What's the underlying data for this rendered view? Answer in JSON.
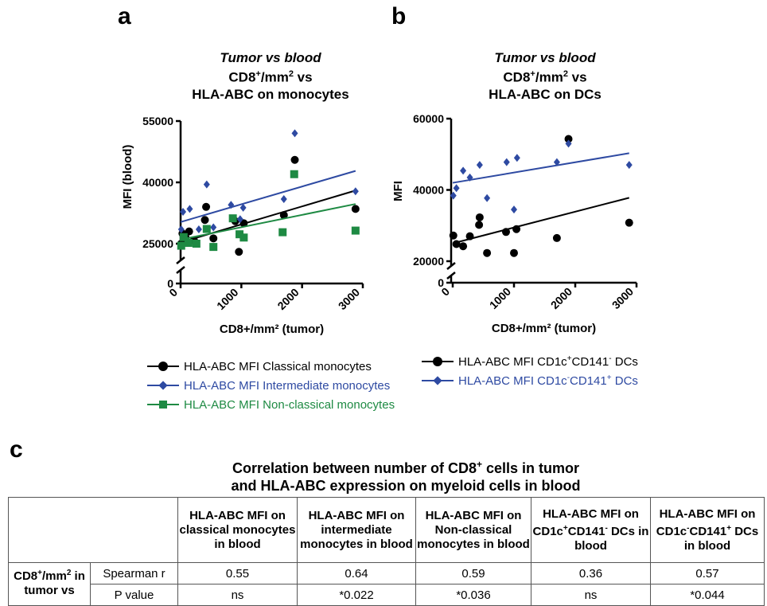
{
  "panels": {
    "a": "a",
    "b": "b",
    "c": "c"
  },
  "chart_a": {
    "title_italic": "Tumor vs blood",
    "title_line2_pre": "CD8",
    "title_line2_sup": "+",
    "title_line2_mid": "/mm",
    "title_line2_sup2": "2",
    "title_line2_post": " vs",
    "title_line3": "HLA-ABC on monocytes"
  },
  "chart_b": {
    "title_italic": "Tumor vs blood",
    "title_line2_pre": "CD8",
    "title_line2_sup": "+",
    "title_line2_mid": "/mm",
    "title_line2_sup2": "2",
    "title_line2_post": " vs",
    "title_line3": "HLA-ABC on DCs"
  },
  "chart_data": [
    {
      "type": "scatter",
      "title": "Tumor vs blood CD8+/mm2 vs HLA-ABC on monocytes",
      "xlabel": "CD8+/mm² (tumor)",
      "ylabel": "MFI (blood)",
      "xlim": [
        0,
        3000
      ],
      "ylim": [
        0,
        55000
      ],
      "y_axis_break": true,
      "xticks": [
        "0",
        "1000",
        "2000",
        "3000"
      ],
      "yticks": [
        "0",
        "25000",
        "40000",
        "55000"
      ],
      "series": [
        {
          "name": "HLA-ABC MFI Classical monocytes",
          "color": "#000000",
          "marker": "circle",
          "x": [
            10,
            30,
            80,
            140,
            220,
            400,
            420,
            540,
            900,
            960,
            1040,
            1700,
            1880,
            2880
          ],
          "y": [
            25000,
            27500,
            26500,
            28000,
            25800,
            30800,
            34000,
            26300,
            30500,
            23000,
            30000,
            32000,
            45500,
            33500
          ],
          "fit": [
            [
              0,
              25300
            ],
            [
              2880,
              38000
            ]
          ]
        },
        {
          "name": "HLA-ABC MFI Intermediate monocytes",
          "color": "#2e4aa2",
          "marker": "diamond",
          "x": [
            10,
            40,
            150,
            300,
            430,
            540,
            830,
            980,
            1030,
            1700,
            1880,
            2880
          ],
          "y": [
            28500,
            32800,
            33500,
            28500,
            39500,
            29000,
            34500,
            31000,
            33800,
            35900,
            52000,
            37800
          ],
          "fit": [
            [
              0,
              30300
            ],
            [
              2880,
              42800
            ]
          ]
        },
        {
          "name": "HLA-ABC MFI Non-classical monocytes",
          "color": "#1e8a43",
          "marker": "square",
          "x": [
            10,
            50,
            130,
            260,
            430,
            540,
            860,
            970,
            1040,
            1680,
            1870,
            2880
          ],
          "y": [
            24500,
            26600,
            25200,
            25000,
            28600,
            24200,
            31200,
            27300,
            26500,
            27800,
            42000,
            28200
          ],
          "fit": [
            [
              0,
              26000
            ],
            [
              2880,
              34700
            ]
          ]
        }
      ]
    },
    {
      "type": "scatter",
      "title": "Tumor vs blood CD8+/mm2 vs HLA-ABC on DCs",
      "xlabel": "CD8+/mm² (tumor)",
      "ylabel": "MFI",
      "xlim": [
        0,
        3000
      ],
      "ylim": [
        0,
        60000
      ],
      "y_axis_break": true,
      "xticks": [
        "0",
        "1000",
        "2000",
        "3000"
      ],
      "yticks": [
        "0",
        "20000",
        "40000",
        "60000"
      ],
      "series": [
        {
          "name": "HLA-ABC MFI CD1c+CD141- DCs",
          "color": "#000000",
          "marker": "circle",
          "x": [
            10,
            60,
            170,
            280,
            430,
            440,
            560,
            870,
            1000,
            1040,
            1700,
            1890,
            2880
          ],
          "y": [
            27200,
            24800,
            24200,
            27000,
            30200,
            32300,
            22300,
            28200,
            22300,
            29000,
            26500,
            54300,
            30800
          ],
          "fit": [
            [
              0,
              25000
            ],
            [
              2880,
              37800
            ]
          ]
        },
        {
          "name": "HLA-ABC MFI CD1c-CD141+ DCs",
          "color": "#2e4aa2",
          "marker": "diamond",
          "x": [
            10,
            60,
            170,
            280,
            440,
            560,
            880,
            1000,
            1050,
            1700,
            1890,
            2880
          ],
          "y": [
            38400,
            40500,
            45400,
            43500,
            47000,
            37700,
            47800,
            34500,
            49000,
            47800,
            53000,
            47000
          ],
          "fit": [
            [
              0,
              42000
            ],
            [
              2880,
              50300
            ]
          ]
        }
      ]
    }
  ],
  "legend_a": [
    {
      "label": "HLA-ABC MFI Classical monocytes",
      "color": "#000000",
      "marker": "circle"
    },
    {
      "label": "HLA-ABC MFI Intermediate monocytes",
      "color": "#2e4aa2",
      "marker": "diamond"
    },
    {
      "label": "HLA-ABC MFI Non-classical monocytes",
      "color": "#1e8a43",
      "marker": "square"
    }
  ],
  "legend_b": [
    {
      "pre": "HLA-ABC MFI CD1c",
      "s1": "+",
      "mid": "CD141",
      "s2": "-",
      "post": " DCs",
      "color": "#000000",
      "marker": "circle"
    },
    {
      "pre": "HLA-ABC MFI CD1c",
      "s1": "-",
      "mid": "CD141",
      "s2": "+",
      "post": " DCs",
      "color": "#2e4aa2",
      "marker": "diamond"
    }
  ],
  "table": {
    "title_line1_pre": "Correlation between number of CD8",
    "title_line1_sup": "+",
    "title_line1_post": " cells in tumor",
    "title_line2": "and HLA-ABC expression on myeloid cells in blood",
    "columns": [
      {
        "text": "HLA-ABC MFI on classical monocytes in blood"
      },
      {
        "text": "HLA-ABC MFI on intermediate monocytes in blood"
      },
      {
        "text": "HLA-ABC MFI on Non-classical monocytes in blood"
      },
      {
        "pre": "HLA-ABC MFI on CD1c",
        "s1": "+",
        "mid": "CD141",
        "s2": "-",
        "post": " DCs in blood"
      },
      {
        "pre": "HLA-ABC MFI on CD1c",
        "s1": "-",
        "mid": "CD141",
        "s2": "+",
        "post": " DCs in blood"
      }
    ],
    "row_header_pre": "CD8",
    "row_header_sup": "+",
    "row_header_mid": "/mm",
    "row_header_sup2": "2",
    "row_header_post": " in tumor vs",
    "rows": [
      {
        "label": "Spearman r",
        "values": [
          "0.55",
          "0.64",
          "0.59",
          "0.36",
          "0.57"
        ]
      },
      {
        "label": "P value",
        "values": [
          "ns",
          "*0.022",
          "*0.036",
          "ns",
          "*0.044"
        ]
      }
    ]
  }
}
